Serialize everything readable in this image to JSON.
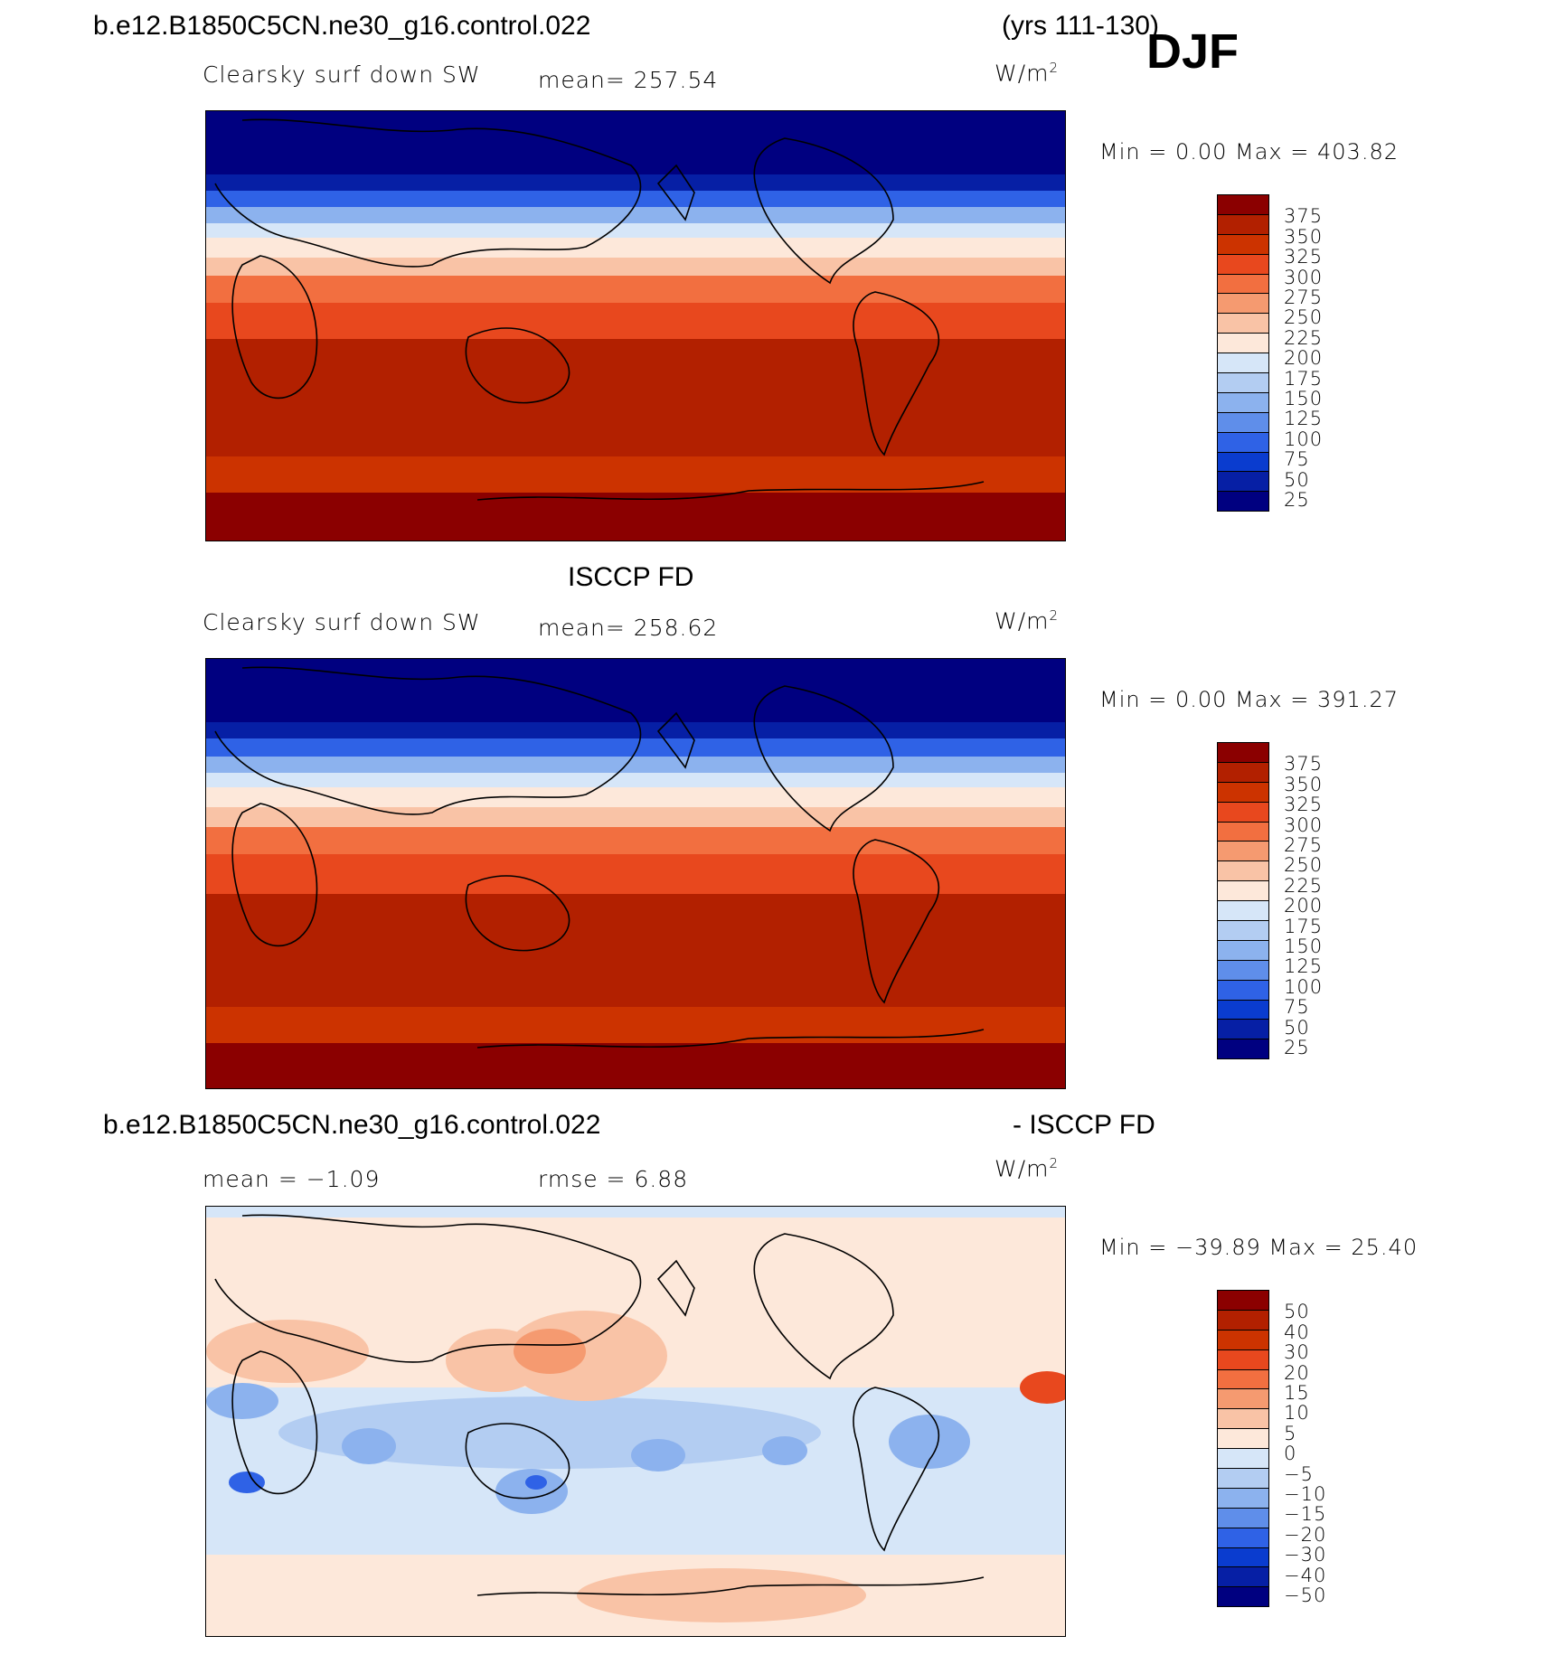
{
  "header": {
    "case_name": "b.e12.B1850C5CN.ne30_g16.control.022",
    "years": "(yrs 111-130)",
    "season": "DJF"
  },
  "panels": [
    {
      "id": "model",
      "top_title": "",
      "variable": "Clearsky surf down SW",
      "stat": "mean= 257.54",
      "units": "W/m",
      "units_sup": "2",
      "minmax": "Min =    0.00 Max = 403.82"
    },
    {
      "id": "obs",
      "top_title": "ISCCP FD",
      "variable": "Clearsky surf down SW",
      "stat": "mean= 258.62",
      "units": "W/m",
      "units_sup": "2",
      "minmax": "Min =    0.00 Max = 391.27"
    },
    {
      "id": "diff",
      "top_title_left": "b.e12.B1850C5CN.ne30_g16.control.022",
      "top_title_right": "- ISCCP FD",
      "stat_mean": "mean =  −1.09",
      "stat_rmse": "rmse =    6.88",
      "units": "W/m",
      "units_sup": "2",
      "minmax": "Min = −39.89  Max =   25.40"
    }
  ],
  "colorbar_abs": {
    "labels": [
      "375",
      "350",
      "325",
      "300",
      "275",
      "250",
      "225",
      "200",
      "175",
      "150",
      "125",
      "100",
      "75",
      "50",
      "25"
    ],
    "colors": [
      "#8b0000",
      "#b22000",
      "#cc3300",
      "#e8481e",
      "#f26f40",
      "#f59a70",
      "#f9c3a6",
      "#fde8da",
      "#d6e6f8",
      "#b3cdf2",
      "#8cb2ee",
      "#5f8eea",
      "#2f62e6",
      "#0a3ccf",
      "#061fa5",
      "#000080"
    ]
  },
  "colorbar_diff": {
    "labels": [
      "50",
      "40",
      "30",
      "20",
      "15",
      "10",
      "5",
      "0",
      "−5",
      "−10",
      "−15",
      "−20",
      "−30",
      "−40",
      "−50"
    ],
    "colors": [
      "#8b0000",
      "#b22000",
      "#cc3300",
      "#e8481e",
      "#f26f40",
      "#f59a70",
      "#f9c3a6",
      "#fde8da",
      "#d6e6f8",
      "#b3cdf2",
      "#8cb2ee",
      "#5f8eea",
      "#2f62e6",
      "#0a3ccf",
      "#061fa5",
      "#000080"
    ]
  }
}
